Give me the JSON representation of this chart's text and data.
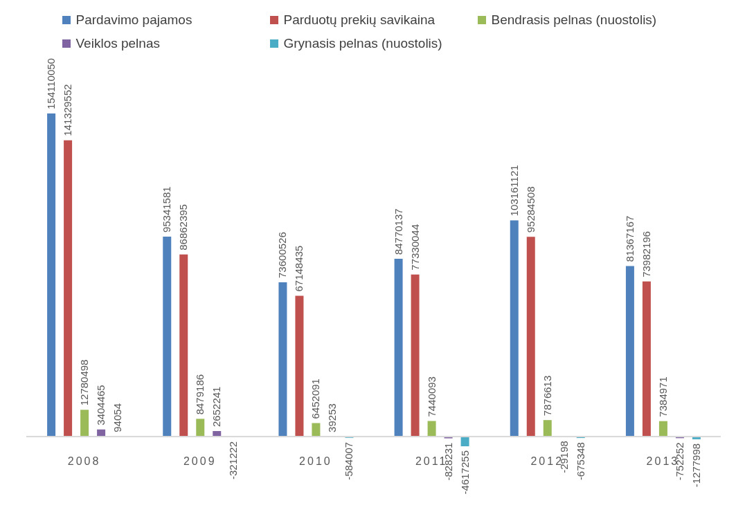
{
  "chart_data": {
    "type": "bar",
    "categories": [
      "2008",
      "2009",
      "2010",
      "2011",
      "2012",
      "2013"
    ],
    "series": [
      {
        "name": "Pardavimo pajamos",
        "color": "#4f81bd",
        "values": [
          154110050,
          95341581,
          73600526,
          84770137,
          103161121,
          81367167
        ]
      },
      {
        "name": "Parduotų prekių savikaina",
        "color": "#c0504d",
        "values": [
          141329552,
          86862395,
          67148435,
          77330044,
          95284508,
          73982196
        ]
      },
      {
        "name": "Bendrasis pelnas (nuostolis)",
        "color": "#9bbb59",
        "values": [
          12780498,
          8479186,
          6452091,
          7440093,
          7876613,
          7384971
        ]
      },
      {
        "name": "Veiklos pelnas",
        "color": "#8064a2",
        "values": [
          3404465,
          2652241,
          39253,
          -828231,
          -29198,
          -752252
        ]
      },
      {
        "name": "Grynasis pelnas (nuostolis)",
        "color": "#4bacc6",
        "values": [
          94054,
          -321222,
          -584007,
          -4617255,
          -675348,
          -1277998
        ]
      }
    ],
    "data_labels": true,
    "legend": "top"
  }
}
